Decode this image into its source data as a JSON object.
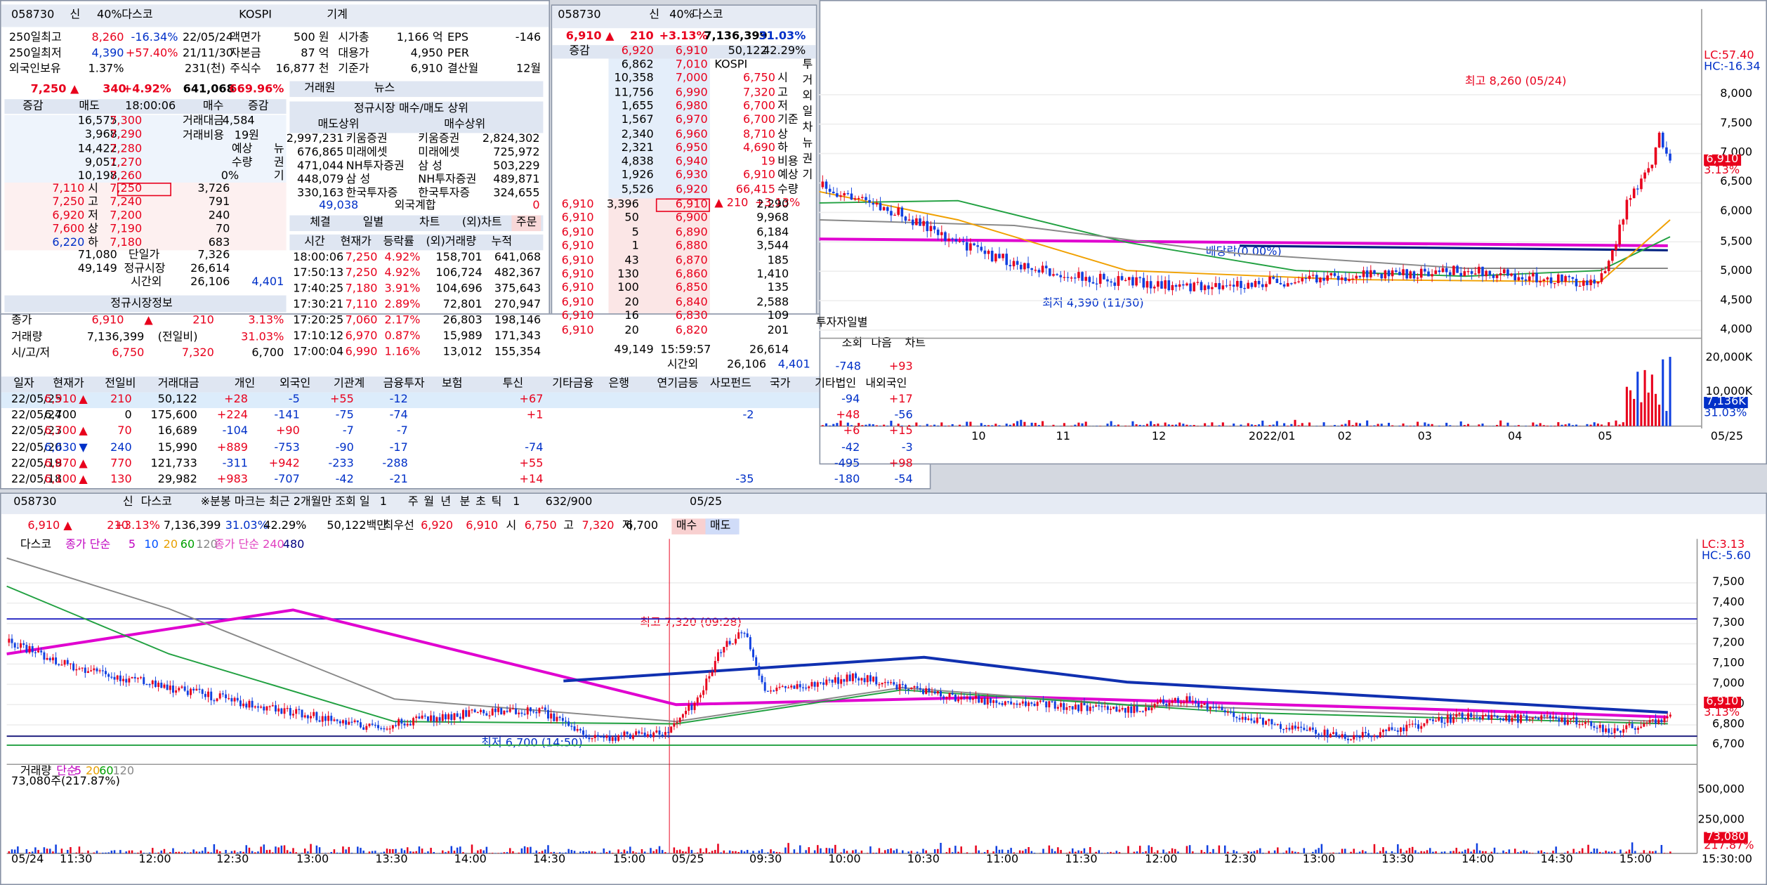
{
  "p1": {
    "header": [
      "058730",
      "신",
      "40%",
      "다스코",
      "KOSPI",
      "기계"
    ],
    "info": [
      [
        "250일최고",
        "8,260",
        "-16.34%",
        "22/05/24",
        "액면가",
        "500 원",
        "시가총",
        "1,166 억",
        "EPS",
        "-146"
      ],
      [
        "250일최저",
        "4,390",
        "+57.40%",
        "21/11/30",
        "자본금",
        "87 억",
        "대용가",
        "4,950",
        "PER"
      ],
      [
        "외국인보유",
        "1.37%",
        "231(천)",
        "주식수",
        "16,877 천",
        "기준가",
        "6,910",
        "결산월",
        "12월"
      ]
    ],
    "quote": [
      "7,250 ▲",
      "340",
      "+4.92%",
      "641,068",
      "669.96%"
    ],
    "book_header": [
      "증감",
      "매도",
      "18:00:06",
      "매수",
      "증감"
    ],
    "asks": [
      [
        "16,575",
        "7,300"
      ],
      [
        "3,968",
        "7,290"
      ],
      [
        "14,422",
        "7,280"
      ],
      [
        "9,051",
        "7,270"
      ],
      [
        "10,198",
        "7,260"
      ]
    ],
    "ask_side": [
      "거래대금",
      "4,584",
      "거래비용",
      "19원",
      "예상",
      "수량",
      "0%"
    ],
    "side_buttons": [
      "뉴",
      "권",
      "기"
    ],
    "bids": [
      [
        "7,110",
        "시",
        "7,250",
        "3,726"
      ],
      [
        "7,250",
        "고",
        "7,240",
        "791"
      ],
      [
        "6,920",
        "저",
        "7,200",
        "240"
      ],
      [
        "7,600",
        "상",
        "7,190",
        "70"
      ],
      [
        "6,220",
        "하",
        "7,180",
        "683"
      ]
    ],
    "totals": [
      [
        "71,080",
        "단일가",
        "7,326"
      ],
      [
        "49,149",
        "정규시장",
        "26,614"
      ],
      [
        "시간외",
        "26,106",
        "4,401"
      ]
    ],
    "regular_title": "정규시장정보",
    "regular": [
      [
        "종가",
        "6,910",
        "▲",
        "210",
        "3.13%"
      ],
      [
        "거래량",
        "7,136,399",
        "(전일비)",
        "31.03%"
      ],
      [
        "시/고/저",
        "6,750",
        "7,320",
        "6,700"
      ]
    ],
    "broker_tabs": [
      "거래원",
      "뉴스"
    ],
    "broker_title": "정규시장 매수/매도 상위",
    "broker_sub": [
      "매도상위",
      "매수상위"
    ],
    "brokers": [
      [
        "2,997,231",
        "키움증권",
        "키움증권",
        "2,824,302"
      ],
      [
        "676,865",
        "미래에셋",
        "미래에셋",
        "725,972"
      ],
      [
        "471,044",
        "NH투자증권",
        "삼 성",
        "503,229"
      ],
      [
        "448,079",
        "삼 성",
        "NH투자증권",
        "489,871"
      ],
      [
        "330,163",
        "한국투자증",
        "한국투자증",
        "324,655"
      ]
    ],
    "broker_foot": [
      "49,038",
      "외국계합",
      "0"
    ],
    "trade_tabs": [
      "체결",
      "일별",
      "차트",
      "(외)차트",
      "주문"
    ],
    "trade_header": [
      "시간",
      "현재가",
      "등락률",
      "(외)거래량",
      "누적"
    ],
    "trades": [
      [
        "18:00:06",
        "7,250",
        "4.92%",
        "158,701",
        "641,068"
      ],
      [
        "17:50:13",
        "7,250",
        "4.92%",
        "106,724",
        "482,367"
      ],
      [
        "17:40:25",
        "7,180",
        "3.91%",
        "104,696",
        "375,643"
      ],
      [
        "17:30:21",
        "7,110",
        "2.89%",
        "72,801",
        "270,947"
      ],
      [
        "17:20:25",
        "7,060",
        "2.17%",
        "26,803",
        "198,146"
      ],
      [
        "17:10:12",
        "6,970",
        "0.87%",
        "15,989",
        "171,343"
      ],
      [
        "17:00:04",
        "6,990",
        "1.16%",
        "13,012",
        "155,354"
      ]
    ]
  },
  "p2": {
    "header": [
      "058730",
      "신",
      "40%",
      "다스코"
    ],
    "quote": [
      "6,910 ▲",
      "210",
      "+3.13%",
      "7,136,399",
      "31.03%"
    ],
    "row": [
      "증감",
      "6,920",
      "6,910",
      "50,122",
      "42.29%"
    ],
    "asks": [
      [
        "6,862",
        "7,010"
      ],
      [
        "10,358",
        "7,000"
      ],
      [
        "11,756",
        "6,990"
      ],
      [
        "1,655",
        "6,980"
      ],
      [
        "1,567",
        "6,970"
      ],
      [
        "2,340",
        "6,960"
      ],
      [
        "2,321",
        "6,950"
      ],
      [
        "4,838",
        "6,940"
      ],
      [
        "1,926",
        "6,930"
      ],
      [
        "5,526",
        "6,920"
      ]
    ],
    "market": "KOSPI",
    "info": [
      [
        "6,750",
        "시"
      ],
      [
        "7,320",
        "고"
      ],
      [
        "6,700",
        "저"
      ],
      [
        "6,700",
        "기준"
      ],
      [
        "8,710",
        "상"
      ],
      [
        "4,690",
        "하"
      ],
      [
        "19",
        "비용"
      ],
      [
        "6,910",
        "예상"
      ],
      [
        "66,415",
        "수량"
      ],
      [
        "▲ 210",
        "+3.13%"
      ]
    ],
    "side_buttons": [
      "투",
      "거",
      "외",
      "일",
      "차",
      "뉴",
      "권",
      "기"
    ],
    "bids": [
      [
        "6,910",
        "3,396",
        "6,910",
        "2,290"
      ],
      [
        "6,910",
        "50",
        "6,900",
        "9,968"
      ],
      [
        "6,910",
        "5",
        "6,890",
        "6,184"
      ],
      [
        "6,910",
        "1",
        "6,880",
        "3,544"
      ],
      [
        "6,910",
        "43",
        "6,870",
        "185"
      ],
      [
        "6,910",
        "130",
        "6,860",
        "1,410"
      ],
      [
        "6,910",
        "100",
        "6,850",
        "135"
      ],
      [
        "6,910",
        "20",
        "6,840",
        "2,588"
      ],
      [
        "6,910",
        "16",
        "6,830",
        "109"
      ],
      [
        "6,910",
        "20",
        "6,820",
        "201"
      ]
    ],
    "totals": [
      [
        "49,149",
        "15:59:57",
        "26,614"
      ],
      [
        "시간외",
        "26,106",
        "4,401"
      ]
    ]
  },
  "p3": {
    "tab": "투자자일별",
    "buttons": [
      "조회",
      "다음",
      "차트"
    ],
    "sum": [
      "-748",
      "+93"
    ],
    "header": [
      "일자",
      "현재가",
      "전일비",
      "거래대금",
      "개인",
      "외국인",
      "기관계",
      "금융투자",
      "보험",
      "투신",
      "기타금융",
      "은행",
      "연기금등",
      "사모펀드",
      "국가",
      "기타법인",
      "내외국인"
    ],
    "rows": [
      [
        "22/05/25",
        "6,910",
        "▲",
        "210",
        "50,122",
        "+28",
        "-5",
        "+55",
        "-12",
        null,
        "+67",
        null,
        null,
        null,
        null,
        null,
        "-94",
        "+17"
      ],
      [
        "22/05/24",
        "6,700",
        null,
        "0",
        "175,600",
        "+224",
        "-141",
        "-75",
        "-74",
        null,
        "+1",
        null,
        null,
        null,
        "-2",
        null,
        "+48",
        "-56"
      ],
      [
        "22/05/23",
        "6,700",
        "▲",
        "70",
        "16,689",
        "-104",
        "+90",
        "-7",
        "-7",
        null,
        null,
        null,
        null,
        null,
        null,
        null,
        "+6",
        "+15"
      ],
      [
        "22/05/20",
        "6,630",
        "▼",
        "240",
        "15,990",
        "+889",
        "-753",
        "-90",
        "-17",
        null,
        "-74",
        null,
        null,
        null,
        null,
        null,
        "-42",
        "-3"
      ],
      [
        "22/05/19",
        "6,870",
        "▲",
        "770",
        "121,733",
        "-311",
        "+942",
        "-233",
        "-288",
        null,
        "+55",
        null,
        null,
        null,
        null,
        null,
        "-495",
        "+98"
      ],
      [
        "22/05/18",
        "6,100",
        "▲",
        "130",
        "29,982",
        "+983",
        "-707",
        "-42",
        "-21",
        null,
        "+14",
        null,
        null,
        null,
        "-35",
        null,
        "-180",
        "-54"
      ]
    ]
  },
  "daily_chart": {
    "lc": "LC:57.40",
    "hc": "HC:-16.34",
    "yticks": [
      "8,000",
      "7,500",
      "7,000",
      "6,500",
      "6,000",
      "5,500",
      "5,000",
      "4,500",
      "4,000"
    ],
    "price_tag": [
      "6,910",
      "3.13%"
    ],
    "annotations": [
      "최고 8,260 (05/24)",
      "최저 4,390 (11/30)",
      "배당락(0.00%)"
    ],
    "vol_ticks": [
      "20,000K",
      "10,000K"
    ],
    "vol_tag": [
      "7,136K",
      "31.03%"
    ],
    "xticks": [
      "10",
      "11",
      "12",
      "2022/01",
      "02",
      "03",
      "04",
      "05",
      "05/25"
    ]
  },
  "minute_chart": {
    "toolbar": [
      "058730",
      "신",
      "다스코",
      "※분봉 마크는 최근 2개월만 조회",
      "일",
      "1",
      "주",
      "월",
      "년",
      "분",
      "초",
      "틱",
      "1",
      "632/900",
      "05/25"
    ],
    "quote": [
      "6,910 ▲",
      "210",
      "+3.13%",
      "7,136,399",
      "31.03%",
      "42.29%",
      "50,122백만",
      "최우선",
      "6,920",
      "6,910",
      "시",
      "6,750",
      "고",
      "7,320",
      "저",
      "6,700",
      "매수",
      "매도"
    ],
    "legend": [
      "다스코",
      "종가 단순",
      "5",
      "10",
      "20",
      "60",
      "120",
      "종가 단순 240",
      "480"
    ],
    "lc": "LC:3.13",
    "hc": "HC:-5.60",
    "yticks": [
      "7,500",
      "7,400",
      "7,300",
      "7,200",
      "7,100",
      "7,000",
      "6,900",
      "6,800",
      "6,700"
    ],
    "price_tag": [
      "6,910",
      "3.13%"
    ],
    "annotations": [
      "최고 7,320 (09:28)",
      "최저 6,700 (14:50)"
    ],
    "vol_legend": [
      "거래량",
      "단순",
      "5",
      "20",
      "60",
      "120"
    ],
    "vol_info": "73,080주(217.87%)",
    "vol_ticks": [
      "500,000",
      "250,000"
    ],
    "vol_tag": [
      "73,080",
      "217.87%"
    ],
    "xticks": [
      "05/24",
      "11:30",
      "12:00",
      "12:30",
      "13:00",
      "13:30",
      "14:00",
      "14:30",
      "15:00",
      "05/25",
      "09:30",
      "10:00",
      "10:30",
      "11:00",
      "11:30",
      "12:00",
      "12:30",
      "13:00",
      "13:30",
      "14:00",
      "14:30",
      "15:00",
      "15:30:00"
    ]
  }
}
